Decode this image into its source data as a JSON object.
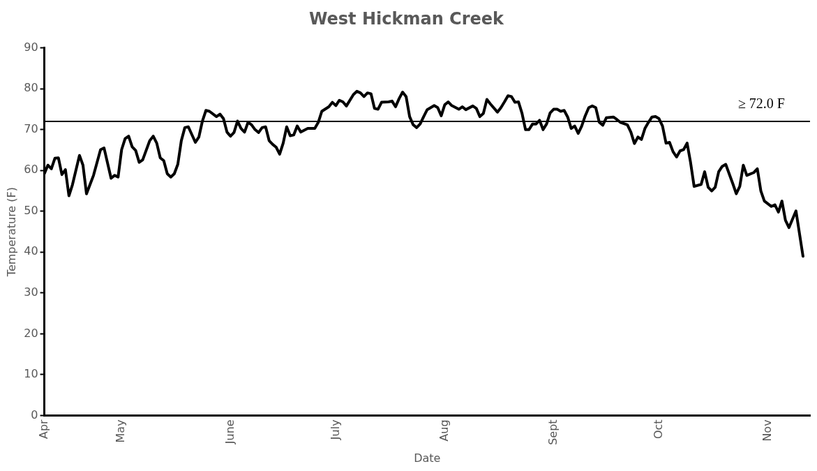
{
  "chart_data": {
    "type": "line",
    "title": "West Hickman Creek",
    "xlabel": "Date",
    "ylabel": "Temperature (F)",
    "xlim": [
      "--04-09",
      "--11-13"
    ],
    "xticks": [
      {
        "value": "--04-09",
        "label": "Apr"
      },
      {
        "value": "--05-01",
        "label": "May"
      },
      {
        "value": "--06-01",
        "label": "June"
      },
      {
        "value": "--07-01",
        "label": "July"
      },
      {
        "value": "--08-01",
        "label": "Aug"
      },
      {
        "value": "--09-01",
        "label": "Sept"
      },
      {
        "value": "--10-01",
        "label": "Oct"
      },
      {
        "value": "--11-01",
        "label": "Nov"
      }
    ],
    "ylim": [
      0,
      90
    ],
    "yticks": [
      0,
      10,
      20,
      30,
      40,
      50,
      60,
      70,
      80,
      90
    ],
    "grid": false,
    "legend": false,
    "marker": "none",
    "line_style": "solid",
    "ref_lines": [
      {
        "axis": "y",
        "value": 72,
        "label": "≥ 72.0 F",
        "color": "#000000"
      }
    ],
    "series": [
      {
        "color": "#000000",
        "x": [
          "--04-09",
          "--04-10",
          "--04-11",
          "--04-12",
          "--04-13",
          "--04-14",
          "--04-15",
          "--04-16",
          "--04-17",
          "--04-19",
          "--04-20",
          "--04-21",
          "--04-23",
          "--04-25",
          "--04-26",
          "--04-28",
          "--04-29",
          "--04-30",
          "--05-01",
          "--05-02",
          "--05-03",
          "--05-04",
          "--05-05",
          "--05-06",
          "--05-07",
          "--05-09",
          "--05-10",
          "--05-11",
          "--05-12",
          "--05-13",
          "--05-14",
          "--05-15",
          "--05-16",
          "--05-17",
          "--05-18",
          "--05-19",
          "--05-20",
          "--05-22",
          "--05-23",
          "--05-24",
          "--05-25",
          "--05-26",
          "--05-28",
          "--05-29",
          "--05-30",
          "--05-31",
          "--06-01",
          "--06-02",
          "--06-03",
          "--06-04",
          "--06-05",
          "--06-06",
          "--06-07",
          "--06-08",
          "--06-09",
          "--06-10",
          "--06-11",
          "--06-12",
          "--06-13",
          "--06-14",
          "--06-15",
          "--06-16",
          "--06-17",
          "--06-18",
          "--06-19",
          "--06-20",
          "--06-21",
          "--06-23",
          "--06-25",
          "--06-26",
          "--06-27",
          "--06-29",
          "--06-30",
          "--07-01",
          "--07-02",
          "--07-03",
          "--07-04",
          "--07-06",
          "--07-07",
          "--07-08",
          "--07-09",
          "--07-10",
          "--07-11",
          "--07-12",
          "--07-13",
          "--07-14",
          "--07-16",
          "--07-17",
          "--07-18",
          "--07-19",
          "--07-20",
          "--07-21",
          "--07-22",
          "--07-23",
          "--07-24",
          "--07-25",
          "--07-26",
          "--07-27",
          "--07-29",
          "--07-30",
          "--07-31",
          "--08-01",
          "--08-02",
          "--08-03",
          "--08-05",
          "--08-06",
          "--08-07",
          "--08-09",
          "--08-10",
          "--08-11",
          "--08-12",
          "--08-13",
          "--08-14",
          "--08-16",
          "--08-17",
          "--08-18",
          "--08-19",
          "--08-20",
          "--08-21",
          "--08-22",
          "--08-23",
          "--08-24",
          "--08-25",
          "--08-26",
          "--08-27",
          "--08-28",
          "--08-29",
          "--08-30",
          "--08-31",
          "--09-01",
          "--09-02",
          "--09-03",
          "--09-04",
          "--09-05",
          "--09-06",
          "--09-07",
          "--09-08",
          "--09-09",
          "--09-10",
          "--09-11",
          "--09-12",
          "--09-13",
          "--09-14",
          "--09-15",
          "--09-16",
          "--09-18",
          "--09-19",
          "--09-20",
          "--09-22",
          "--09-23",
          "--09-24",
          "--09-25",
          "--09-26",
          "--09-27",
          "--09-28",
          "--09-29",
          "--09-30",
          "--10-01",
          "--10-02",
          "--10-03",
          "--10-04",
          "--10-05",
          "--10-06",
          "--10-07",
          "--10-08",
          "--10-09",
          "--10-10",
          "--10-11",
          "--10-13",
          "--10-14",
          "--10-15",
          "--10-16",
          "--10-17",
          "--10-18",
          "--10-19",
          "--10-20",
          "--10-22",
          "--10-23",
          "--10-24",
          "--10-25",
          "--10-26",
          "--10-28",
          "--10-29",
          "--10-30",
          "--10-31",
          "--11-02",
          "--11-03",
          "--11-04",
          "--11-05",
          "--11-06",
          "--11-07",
          "--11-09",
          "--11-11"
        ],
        "values": [
          59.2,
          61.3,
          60.4,
          63.0,
          63.1,
          59.0,
          60.2,
          53.8,
          56.5,
          63.7,
          61.3,
          54.3,
          58.8,
          65.1,
          65.5,
          58.1,
          58.8,
          58.4,
          65.1,
          67.8,
          68.4,
          65.8,
          64.9,
          62.0,
          62.6,
          67.3,
          68.4,
          66.7,
          63.1,
          62.4,
          59.2,
          58.4,
          59.2,
          61.5,
          67.3,
          70.5,
          70.7,
          66.9,
          68.2,
          72.1,
          74.7,
          74.5,
          73.2,
          73.8,
          72.7,
          69.4,
          68.4,
          69.3,
          72.1,
          70.3,
          69.4,
          71.8,
          71.2,
          70.0,
          69.3,
          70.5,
          70.7,
          67.3,
          66.4,
          65.7,
          64.0,
          66.7,
          70.7,
          68.5,
          68.7,
          70.9,
          69.4,
          70.3,
          70.3,
          71.8,
          74.5,
          75.6,
          76.7,
          75.9,
          77.2,
          76.8,
          75.8,
          78.6,
          79.4,
          79.0,
          78.1,
          79.0,
          78.8,
          75.2,
          75.0,
          76.7,
          76.8,
          77.0,
          75.6,
          77.6,
          79.2,
          78.1,
          73.2,
          71.2,
          70.5,
          71.4,
          73.2,
          74.9,
          75.9,
          75.4,
          73.4,
          76.1,
          76.8,
          75.9,
          75.0,
          75.6,
          74.9,
          75.8,
          75.2,
          73.2,
          74.0,
          77.4,
          76.3,
          74.3,
          75.4,
          76.8,
          78.3,
          78.1,
          76.7,
          76.8,
          74.0,
          70.0,
          70.0,
          71.4,
          71.4,
          72.3,
          70.0,
          71.4,
          74.1,
          75.0,
          75.0,
          74.5,
          74.7,
          73.1,
          70.3,
          70.9,
          69.1,
          70.9,
          73.4,
          75.4,
          75.8,
          75.4,
          71.8,
          71.1,
          72.9,
          73.1,
          72.5,
          71.8,
          71.2,
          69.4,
          66.6,
          68.2,
          67.6,
          70.3,
          71.8,
          73.1,
          73.2,
          72.7,
          70.9,
          66.7,
          66.9,
          64.6,
          63.3,
          64.8,
          65.1,
          66.7,
          61.9,
          56.1,
          56.6,
          59.7,
          55.9,
          55.0,
          55.9,
          59.7,
          61.0,
          61.5,
          56.8,
          54.3,
          56.1,
          61.3,
          58.8,
          59.5,
          60.4,
          55.0,
          52.5,
          51.2,
          51.6,
          49.8,
          52.5,
          47.8,
          46.0,
          50.1,
          39.0
        ]
      }
    ]
  }
}
